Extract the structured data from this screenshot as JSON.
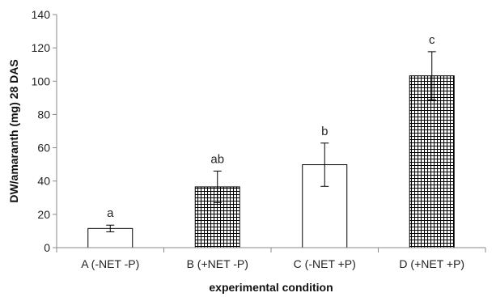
{
  "chart_data": {
    "type": "bar",
    "title": "",
    "xlabel": "experimental condition",
    "ylabel": "DW/amaranth (mg) 28 DAS",
    "ylim": [
      0,
      140
    ],
    "yticks": [
      0,
      20,
      40,
      60,
      80,
      100,
      120,
      140
    ],
    "grid": false,
    "legend": "none",
    "categories": [
      "A (-NET -P)",
      "B (+NET -P)",
      "C (-NET +P)",
      "D (+NET +P)"
    ],
    "values": [
      11.5,
      36.5,
      49.8,
      103.2
    ],
    "error": [
      2,
      9.5,
      13,
      14.5
    ],
    "significance": [
      "a",
      "ab",
      "b",
      "c"
    ],
    "fills": [
      "open",
      "grid",
      "open",
      "grid"
    ],
    "colors": {
      "bar_edge": "#000000",
      "open_fill": "#ffffff",
      "grid_line": "#000000",
      "axis": "#888888"
    }
  }
}
